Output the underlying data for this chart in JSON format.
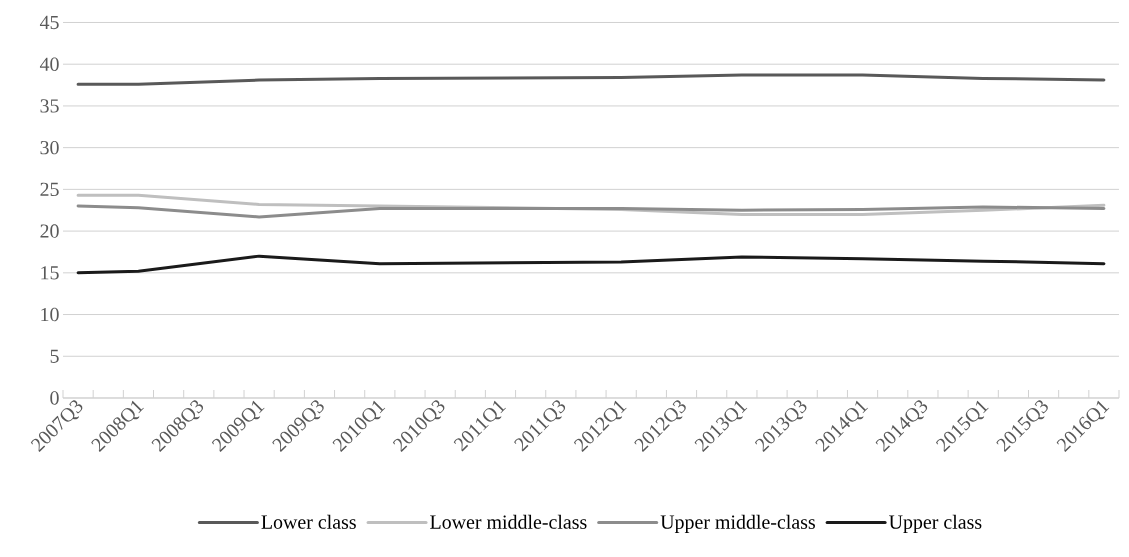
{
  "chart_data": {
    "type": "line",
    "categories": [
      "2007Q3",
      null,
      "2008Q1",
      null,
      "2008Q3",
      null,
      "2009Q1",
      null,
      "2009Q3",
      null,
      "2010Q1",
      null,
      "2010Q3",
      null,
      "2011Q1",
      null,
      "2011Q3",
      null,
      "2012Q1",
      null,
      "2012Q3",
      null,
      "2013Q1",
      null,
      "2013Q3",
      null,
      "2014Q1",
      null,
      "2014Q3",
      null,
      "2015Q1",
      null,
      "2015Q3",
      null,
      "2016Q1"
    ],
    "series": [
      {
        "name": "Lower class",
        "color": "#595959",
        "values": [
          37.6,
          null,
          37.6,
          null,
          null,
          null,
          38.1,
          null,
          null,
          null,
          38.3,
          null,
          null,
          null,
          null,
          null,
          null,
          null,
          38.4,
          null,
          null,
          null,
          38.7,
          null,
          null,
          null,
          38.7,
          null,
          null,
          null,
          38.3,
          null,
          null,
          null,
          38.1
        ]
      },
      {
        "name": "Lower middle-class",
        "color": "#bfbfbf",
        "values": [
          24.3,
          null,
          24.3,
          null,
          null,
          null,
          23.2,
          null,
          null,
          null,
          23.0,
          null,
          null,
          null,
          null,
          null,
          null,
          null,
          22.6,
          null,
          null,
          null,
          22.0,
          null,
          null,
          null,
          22.0,
          null,
          null,
          null,
          22.5,
          null,
          null,
          null,
          23.1
        ]
      },
      {
        "name": "Upper middle-class",
        "color": "#8c8c8c",
        "values": [
          23.0,
          null,
          22.8,
          null,
          null,
          null,
          21.7,
          null,
          null,
          null,
          22.7,
          null,
          null,
          null,
          null,
          null,
          null,
          null,
          22.7,
          null,
          null,
          null,
          22.5,
          null,
          null,
          null,
          22.6,
          null,
          null,
          null,
          22.9,
          null,
          null,
          null,
          22.7
        ]
      },
      {
        "name": "Upper class",
        "color": "#1a1a1a",
        "values": [
          15.0,
          null,
          15.2,
          null,
          null,
          null,
          17.0,
          null,
          null,
          null,
          16.1,
          null,
          null,
          null,
          null,
          null,
          null,
          null,
          16.3,
          null,
          null,
          null,
          16.9,
          null,
          null,
          null,
          16.7,
          null,
          null,
          null,
          16.4,
          null,
          null,
          null,
          16.1
        ]
      }
    ],
    "ylim": [
      0,
      45
    ],
    "yticks": [
      0,
      5,
      10,
      15,
      20,
      25,
      30,
      35,
      40,
      45
    ],
    "grid": "y",
    "legend": "bottom",
    "marker": "none",
    "line_style": "solid"
  }
}
